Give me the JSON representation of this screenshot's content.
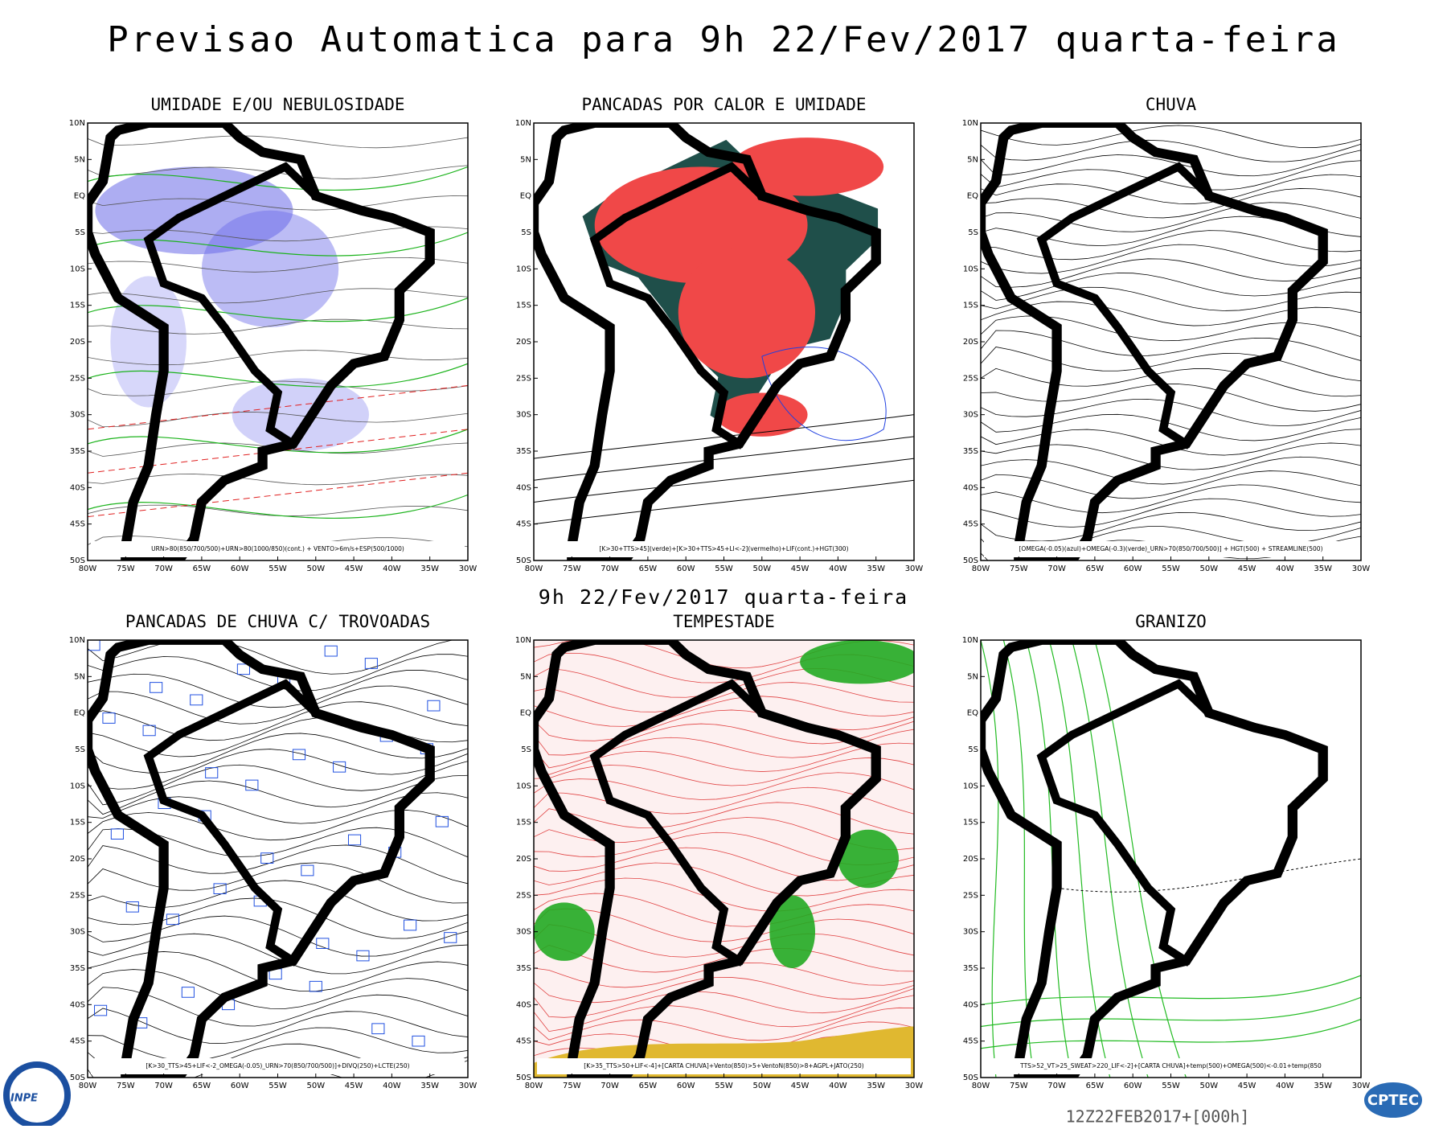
{
  "title": "Previsao Automatica  para 9h 22/Fev/2017 quarta-feira",
  "subtitle": "9h 22/Fev/2017 quarta-feira",
  "footer": "12Z22FEB2017+[000h]",
  "logos": [
    "INPE",
    "CPTEC"
  ],
  "lat_labels": [
    "10N",
    "5N",
    "EQ",
    "5S",
    "10S",
    "15S",
    "20S",
    "25S",
    "30S",
    "35S",
    "40S",
    "45S",
    "50S"
  ],
  "lon_labels": [
    "80W",
    "75W",
    "70W",
    "65W",
    "60W",
    "55W",
    "50W",
    "45W",
    "40W",
    "35W",
    "30W"
  ],
  "panels": [
    {
      "title": "UMIDADE E/OU NEBULOSIDADE",
      "caption": "URN>80(850/700/500)+URN>80(1000/850)(cont.) + VENTO>6m/s+ESP(500/1000)"
    },
    {
      "title": "PANCADAS POR CALOR E UMIDADE",
      "caption": "[K>30+TTS>45](verde)+[K>30+TTS>45+LI<-2](vermelho)+LIF(cont.)+HGT(300)"
    },
    {
      "title": "CHUVA",
      "caption": "[OMEGA(-0.05)(azul)+OMEGA(-0.3)(verde)_URN>70(850/700/500)] + HGT(500) + STREAMLINE(500)"
    },
    {
      "title": "PANCADAS DE CHUVA C/ TROVOADAS",
      "caption": "[K>30_TTS>45+LIF<-2_OMEGA(-0.05)_URN>70(850/700/500)]+DIVQ(250)+LCTE(250)"
    },
    {
      "title": "TEMPESTADE",
      "caption": "[K>35_TTS>50+LIF<-4]+[CARTA CHUVA]+Vento(850)>5+VentoN(850)>8+AGPL+JATO(250)"
    },
    {
      "title": "GRANIZO",
      "caption": "TTS>52_VT>25_SWEAT>220_LIF<-2]+[CARTA CHUVA]+temp(500)+OMEGA(500)<-0.01+temp(850"
    }
  ]
}
